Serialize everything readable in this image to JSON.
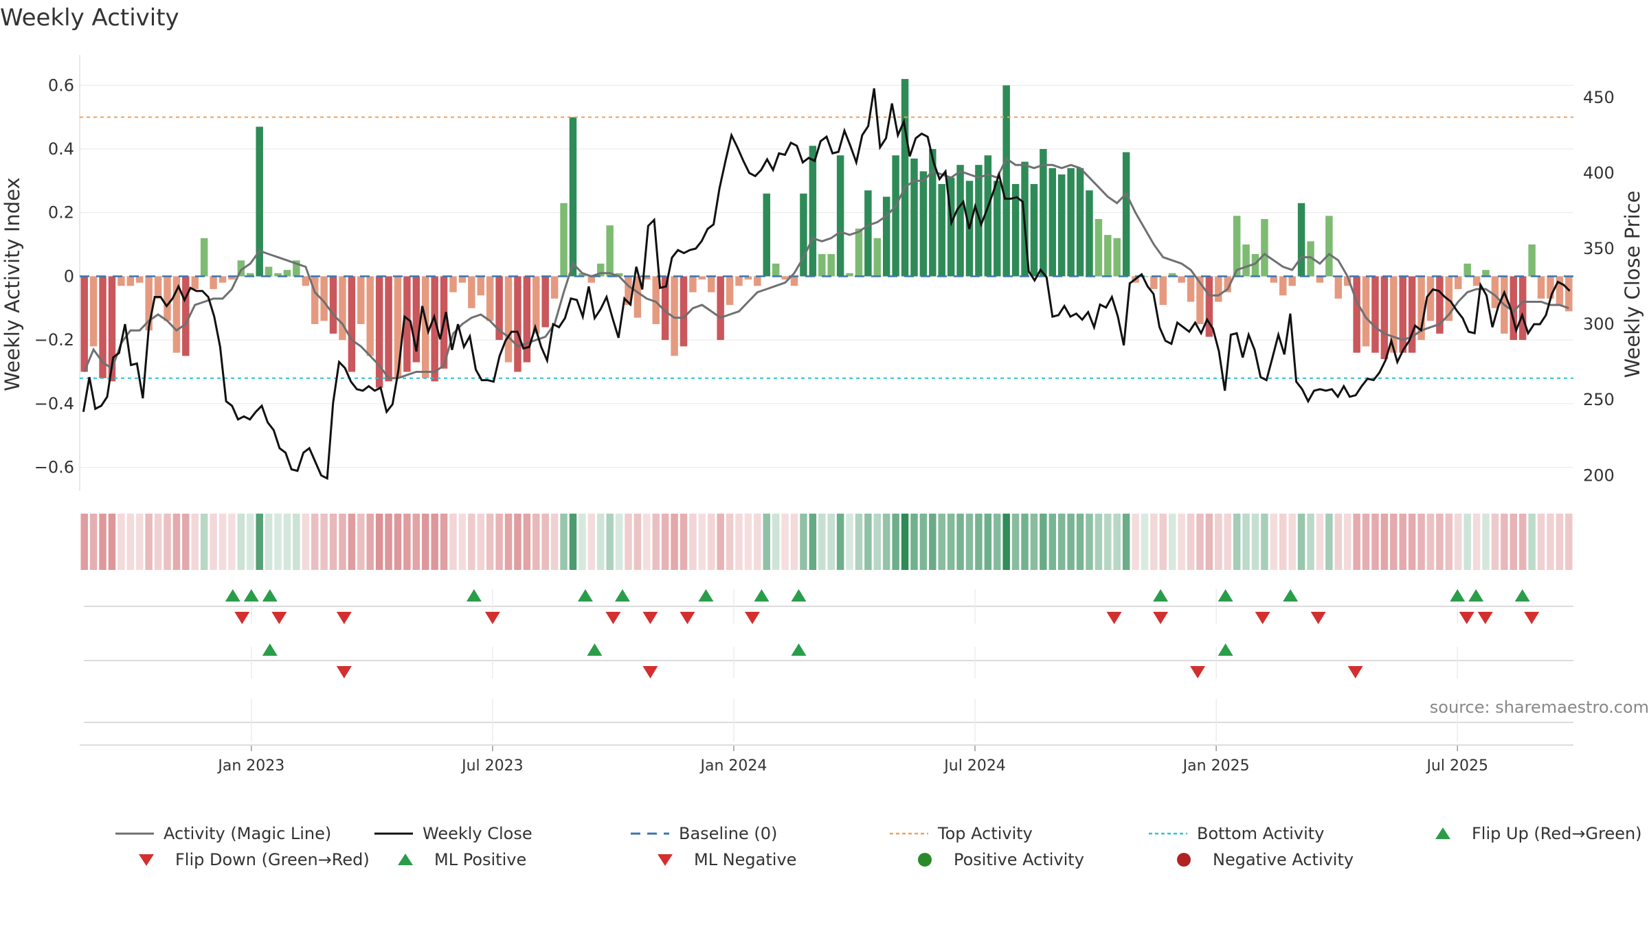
{
  "title": "Weekly Activity",
  "source": "source: sharemaestro.com",
  "colors": {
    "dark_green": "#2e8b57",
    "light_green": "#7dbb72",
    "dark_red": "#c9575c",
    "light_red": "#e59a80",
    "magic_line": "#6e7072",
    "close_line": "#111111",
    "baseline": "#3a76b0",
    "top_line": "#f0a05a",
    "bottom_line": "#27c4d4",
    "marker_up": "#2a9d4a",
    "marker_down": "#d32f2f",
    "pos_dot": "#2a8a2a",
    "neg_dot": "#b22222"
  },
  "legend": [
    {
      "key": "magic",
      "label": "Activity (Magic Line)",
      "icon": "gray-line-icon"
    },
    {
      "key": "close",
      "label": "Weekly Close",
      "icon": "black-line-icon"
    },
    {
      "key": "baseline",
      "label": "Baseline (0)",
      "icon": "blue-dash-icon"
    },
    {
      "key": "top",
      "label": "Top Activity",
      "icon": "orange-dot-line-icon"
    },
    {
      "key": "bottom",
      "label": "Bottom Activity",
      "icon": "cyan-dot-line-icon"
    },
    {
      "key": "flipup",
      "label": "Flip Up (Red→Green)",
      "icon": "green-triangle-up-icon"
    },
    {
      "key": "flipdown",
      "label": "Flip Down (Green→Red)",
      "icon": "red-triangle-down-icon"
    },
    {
      "key": "mlpos",
      "label": "ML Positive",
      "icon": "green-triangle-up-icon"
    },
    {
      "key": "mlneg",
      "label": "ML Negative",
      "icon": "red-triangle-down-icon"
    },
    {
      "key": "posact",
      "label": "Positive Activity",
      "icon": "green-circle-icon"
    },
    {
      "key": "negact",
      "label": "Negative Activity",
      "icon": "red-circle-icon"
    }
  ],
  "chart_data": {
    "type": "bar",
    "title": "Weekly Activity",
    "ylabel": "Weekly Activity Index",
    "y2label": "Weekly Close Price",
    "ylim": [
      -0.67,
      0.62
    ],
    "y2lim": [
      190.6,
      462.2
    ],
    "yticks": [
      -0.6,
      -0.4,
      -0.2,
      0,
      0.2,
      0.4,
      0.6
    ],
    "ytick_labels": [
      "−0.6",
      "−0.4",
      "−0.2",
      "0",
      "0.2",
      "0.4",
      "0.6"
    ],
    "y2ticks": [
      200,
      250,
      300,
      350,
      400,
      450
    ],
    "xlim_weeks": [
      -18.5,
      142.5
    ],
    "xticks": [
      {
        "week": 0,
        "label": "Jan 2023"
      },
      {
        "week": 26,
        "label": "Jul 2023"
      },
      {
        "week": 52,
        "label": "Jan 2024"
      },
      {
        "week": 78,
        "label": "Jul 2024"
      },
      {
        "week": 104,
        "label": "Jan 2025"
      },
      {
        "week": 130,
        "label": "Jul 2025"
      }
    ],
    "top_activity": 0.5,
    "bottom_activity": -0.32,
    "baseline": 0,
    "activity": [
      -0.3,
      -0.22,
      -0.32,
      -0.33,
      -0.03,
      -0.03,
      -0.02,
      -0.17,
      -0.07,
      -0.14,
      -0.24,
      -0.25,
      -0.04,
      0.12,
      -0.04,
      -0.02,
      -0.01,
      0.05,
      0.01,
      0.47,
      0.03,
      0.01,
      0.02,
      0.05,
      -0.03,
      -0.15,
      -0.14,
      -0.18,
      -0.2,
      -0.3,
      -0.15,
      -0.25,
      -0.35,
      -0.33,
      -0.32,
      -0.3,
      -0.27,
      -0.32,
      -0.33,
      -0.29,
      -0.05,
      -0.02,
      -0.1,
      -0.06,
      -0.14,
      -0.2,
      -0.27,
      -0.3,
      -0.27,
      -0.18,
      -0.16,
      -0.07,
      0.23,
      0.5,
      0.01,
      -0.02,
      0.04,
      0.16,
      0.01,
      -0.09,
      -0.13,
      -0.01,
      -0.15,
      -0.2,
      -0.25,
      -0.22,
      -0.05,
      -0.01,
      -0.05,
      -0.2,
      -0.09,
      -0.03,
      -0.01,
      -0.03,
      0.26,
      0.04,
      -0.01,
      -0.03,
      0.26,
      0.41,
      0.07,
      0.07,
      0.38,
      0.01,
      0.15,
      0.27,
      0.12,
      0.25,
      0.38,
      0.62,
      0.37,
      0.33,
      0.4,
      0.29,
      0.31,
      0.35,
      0.3,
      0.35,
      0.38,
      0.3,
      0.6,
      0.29,
      0.36,
      0.29,
      0.4,
      0.34,
      0.32,
      0.34,
      0.34,
      0.27,
      0.18,
      0.13,
      0.12,
      0.39,
      -0.02,
      0.0,
      -0.04,
      -0.09,
      0.01,
      -0.02,
      -0.08,
      -0.15,
      -0.19,
      -0.08,
      -0.05,
      0.19,
      0.1,
      0.07,
      0.18,
      -0.02,
      -0.06,
      -0.03,
      0.23,
      0.11,
      -0.02,
      0.19,
      -0.07,
      -0.03,
      -0.24,
      -0.22,
      -0.24,
      -0.26,
      -0.24,
      -0.24,
      -0.24,
      -0.2,
      -0.14,
      -0.18,
      -0.14,
      -0.04,
      0.04,
      -0.03,
      0.02,
      -0.1,
      -0.18,
      -0.2,
      -0.2,
      0.1,
      -0.07,
      -0.07,
      -0.09,
      -0.11
    ],
    "magic_line": [
      -0.3,
      -0.23,
      -0.27,
      -0.29,
      -0.21,
      -0.17,
      -0.17,
      -0.14,
      -0.12,
      -0.14,
      -0.17,
      -0.15,
      -0.09,
      -0.08,
      -0.07,
      -0.07,
      -0.04,
      0.02,
      0.04,
      0.08,
      0.07,
      0.06,
      0.05,
      0.04,
      0.03,
      -0.05,
      -0.08,
      -0.12,
      -0.15,
      -0.2,
      -0.22,
      -0.25,
      -0.28,
      -0.32,
      -0.32,
      -0.31,
      -0.3,
      -0.3,
      -0.3,
      -0.28,
      -0.18,
      -0.15,
      -0.13,
      -0.12,
      -0.14,
      -0.17,
      -0.19,
      -0.22,
      -0.21,
      -0.2,
      -0.19,
      -0.15,
      -0.05,
      0.04,
      0.01,
      0.0,
      0.01,
      0.01,
      0.0,
      -0.03,
      -0.05,
      -0.07,
      -0.08,
      -0.11,
      -0.13,
      -0.13,
      -0.1,
      -0.09,
      -0.11,
      -0.13,
      -0.12,
      -0.11,
      -0.08,
      -0.05,
      -0.04,
      -0.03,
      -0.02,
      0.01,
      0.06,
      0.12,
      0.11,
      0.12,
      0.14,
      0.13,
      0.14,
      0.16,
      0.17,
      0.19,
      0.22,
      0.28,
      0.3,
      0.3,
      0.33,
      0.32,
      0.31,
      0.33,
      0.32,
      0.31,
      0.32,
      0.31,
      0.37,
      0.35,
      0.35,
      0.34,
      0.35,
      0.35,
      0.34,
      0.35,
      0.34,
      0.31,
      0.28,
      0.25,
      0.23,
      0.26,
      0.2,
      0.15,
      0.1,
      0.06,
      0.05,
      0.04,
      0.02,
      -0.02,
      -0.06,
      -0.06,
      -0.04,
      0.02,
      0.03,
      0.04,
      0.07,
      0.05,
      0.03,
      0.02,
      0.06,
      0.06,
      0.04,
      0.07,
      0.05,
      0.0,
      -0.08,
      -0.13,
      -0.16,
      -0.18,
      -0.19,
      -0.2,
      -0.19,
      -0.17,
      -0.16,
      -0.15,
      -0.12,
      -0.08,
      -0.05,
      -0.04,
      -0.04,
      -0.06,
      -0.09,
      -0.11,
      -0.08,
      -0.08,
      -0.08,
      -0.09,
      -0.09,
      -0.1
    ],
    "weekly_close": [
      242,
      265,
      244,
      246,
      252,
      278,
      281,
      300,
      273,
      274,
      251,
      298,
      318,
      318,
      312,
      317,
      325,
      316,
      324,
      322,
      322,
      318,
      305,
      285,
      249,
      246,
      237,
      239,
      237,
      242,
      246,
      235,
      230,
      218,
      215,
      204,
      203,
      215,
      218,
      209,
      200,
      198,
      248,
      275,
      271,
      262,
      257,
      256,
      259,
      256,
      258,
      242,
      247,
      270,
      305,
      302,
      282,
      312,
      295,
      305,
      290,
      308,
      283,
      300,
      285,
      292,
      270,
      263,
      263,
      262,
      279,
      289,
      295,
      295,
      284,
      285,
      298,
      285,
      276,
      300,
      298,
      304,
      317,
      316,
      305,
      325,
      304,
      310,
      318,
      304,
      291,
      317,
      313,
      338,
      323,
      365,
      369,
      324,
      325,
      344,
      349,
      347,
      349,
      350,
      355,
      363,
      366,
      390,
      408,
      425,
      417,
      408,
      400,
      398,
      402,
      409,
      402,
      413,
      412,
      420,
      418,
      407,
      410,
      408,
      421,
      424,
      413,
      414,
      428,
      418,
      407,
      425,
      431,
      456,
      417,
      423,
      446,
      425,
      434,
      411,
      423,
      426,
      424,
      407,
      396,
      401,
      367,
      376,
      381,
      363,
      378,
      366,
      376,
      387,
      399,
      383,
      383,
      384,
      381,
      335,
      329,
      336,
      331,
      305,
      306,
      312,
      305,
      307,
      303,
      308,
      298,
      313,
      311,
      318,
      305,
      286,
      327,
      330,
      333,
      325,
      320,
      298,
      289,
      287,
      301,
      298,
      295,
      301,
      294,
      303,
      297,
      282,
      256,
      293,
      294,
      278,
      293,
      283,
      265,
      263,
      278,
      293,
      280,
      307,
      262,
      257,
      249,
      256,
      257,
      256,
      257,
      252,
      259,
      252,
      253,
      259,
      264,
      263,
      268,
      276,
      289,
      275,
      283,
      289,
      299,
      296,
      318,
      323,
      322,
      318,
      315,
      309,
      304,
      295,
      294,
      326,
      319,
      298,
      312,
      321,
      311,
      296,
      306,
      294,
      300,
      300,
      306,
      320,
      328,
      326,
      322
    ],
    "flip_up_weeks": [
      -2,
      0,
      2,
      24,
      36,
      40,
      49,
      55,
      59,
      98,
      105,
      112,
      130,
      132,
      137
    ],
    "flip_down_weeks": [
      -1,
      3,
      10,
      26,
      39,
      43,
      47,
      54,
      93,
      98,
      109,
      115,
      131,
      133,
      138
    ],
    "ml_positive_weeks": [
      2,
      37,
      59,
      105
    ],
    "ml_negative_weeks": [
      10,
      43,
      102,
      119
    ]
  }
}
